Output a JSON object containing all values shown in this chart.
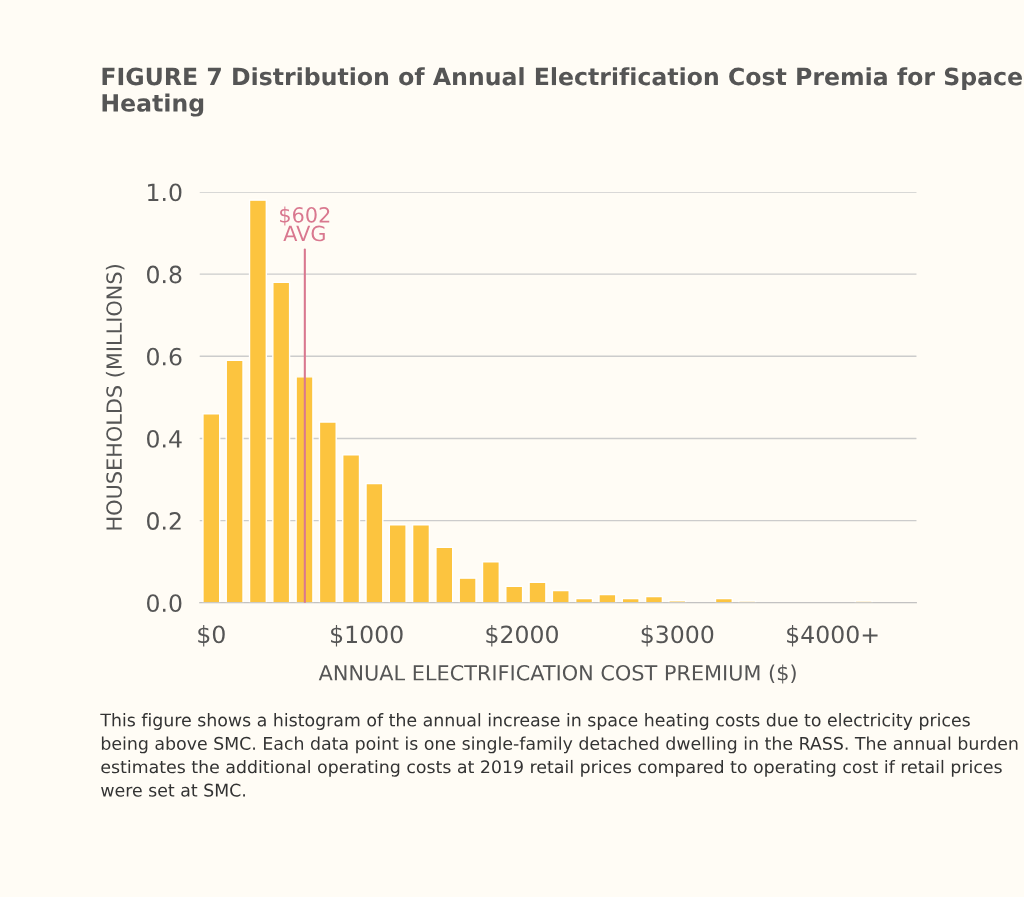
{
  "chart_data": {
    "type": "histogram",
    "title": "FIGURE 7 Distribution of Annual Electrification Cost Premia for Space Heating",
    "xlabel": "ANNUAL ELECTRIFICATION COST PREMIUM ($)",
    "ylabel": "HOUSEHOLDS (MILLIONS)",
    "bins": [
      -75,
      75,
      225,
      375,
      525,
      675,
      825,
      975,
      1125,
      1275,
      1425,
      1575,
      1725,
      1875,
      2025,
      2175,
      2325,
      2475,
      2625,
      2775,
      2925,
      3075,
      3225,
      3375,
      3525,
      3675,
      3825,
      3975,
      4125,
      4275
    ],
    "values": [
      0.46,
      0.59,
      0.98,
      0.78,
      0.55,
      0.44,
      0.36,
      0.29,
      0.19,
      0.19,
      0.135,
      0.06,
      0.1,
      0.04,
      0.05,
      0.03,
      0.01,
      0.02,
      0.01,
      0.015,
      0.005,
      null,
      0.01,
      0.004,
      null,
      null,
      null,
      null,
      0.004
    ],
    "color": "#fcc43f",
    "xlim": [
      -75,
      4540
    ],
    "xticks": [
      {
        "value": 0,
        "label": "$0"
      },
      {
        "value": 1000,
        "label": "$1000"
      },
      {
        "value": 2000,
        "label": "$2000"
      },
      {
        "value": 3000,
        "label": "$3000"
      },
      {
        "value": 4000,
        "label": "$4000+"
      }
    ],
    "ylim": [
      0,
      1.0
    ],
    "yticks": [
      {
        "value": 0,
        "label": "0.0"
      },
      {
        "value": 0.2,
        "label": "0.2"
      },
      {
        "value": 0.4,
        "label": "0.4"
      },
      {
        "value": 0.6,
        "label": "0.6"
      },
      {
        "value": 0.8,
        "label": "0.8"
      },
      {
        "value": 1.0,
        "label": "1.0"
      }
    ],
    "grid": "y",
    "ref_lines": [
      {
        "axis": "x",
        "value": 602,
        "label": "$602\nAVG",
        "color": "#d9788f"
      }
    ],
    "annotations": [
      "This figure shows a histogram of the annual increase in space heating costs due to electricity prices being above SMC. Each data point is one single-family detached dwelling in the RASS. The annual burden estimates the additional operating costs at 2019 retail prices compared to operating cost if retail prices were set at SMC."
    ]
  }
}
